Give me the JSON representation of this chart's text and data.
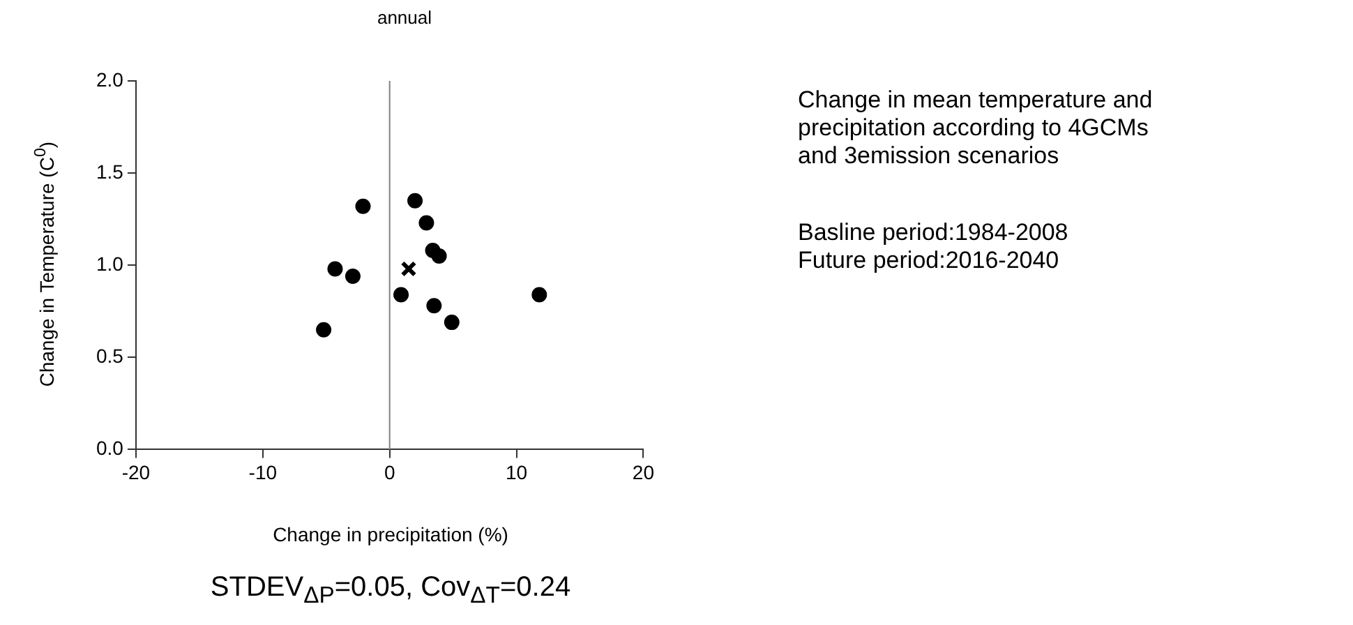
{
  "chart_data": {
    "type": "scatter",
    "title": "annual",
    "xlabel": "Change in precipitation (%)",
    "ylabel": "Change in Temperature (C$^{0}$)",
    "xlim": [
      -20,
      20
    ],
    "xticks": [
      -20,
      -10,
      0,
      10,
      20
    ],
    "ylim": [
      0,
      2
    ],
    "yticks": [
      {
        "value": 0,
        "label": "0.0"
      },
      {
        "value": 0.5,
        "label": "0.5"
      },
      {
        "value": 1,
        "label": "1.0"
      },
      {
        "value": 1.5,
        "label": "1.5"
      },
      {
        "value": 2,
        "label": "2.0"
      }
    ],
    "grid": false,
    "legend": false,
    "series": [
      {
        "color": "#000000",
        "marker": "circle",
        "x": [
          -5.2,
          -4.3,
          -2.9,
          -2.1,
          2.0,
          2.9,
          3.4,
          3.9,
          0.9,
          3.5,
          4.9,
          11.8
        ],
        "values": [
          0.65,
          0.98,
          0.94,
          1.32,
          1.35,
          1.23,
          1.08,
          1.05,
          0.84,
          0.78,
          0.69,
          0.84
        ]
      },
      {
        "color": "#000000",
        "marker": "cross",
        "x": [
          1.5
        ],
        "values": [
          0.98
        ]
      }
    ],
    "ref_lines": [
      {
        "axis": "x",
        "value": 0,
        "color": "#808080"
      }
    ],
    "annotations": [
      "Change in mean temperature and precipitation according to 4GCMs and 3emission scenarios",
      "Basline period:1984-2008",
      "Future period:2016-2040",
      "STDEV$_{ΔP}$=0.05, Cov$_{ΔT}$=0.24"
    ]
  }
}
